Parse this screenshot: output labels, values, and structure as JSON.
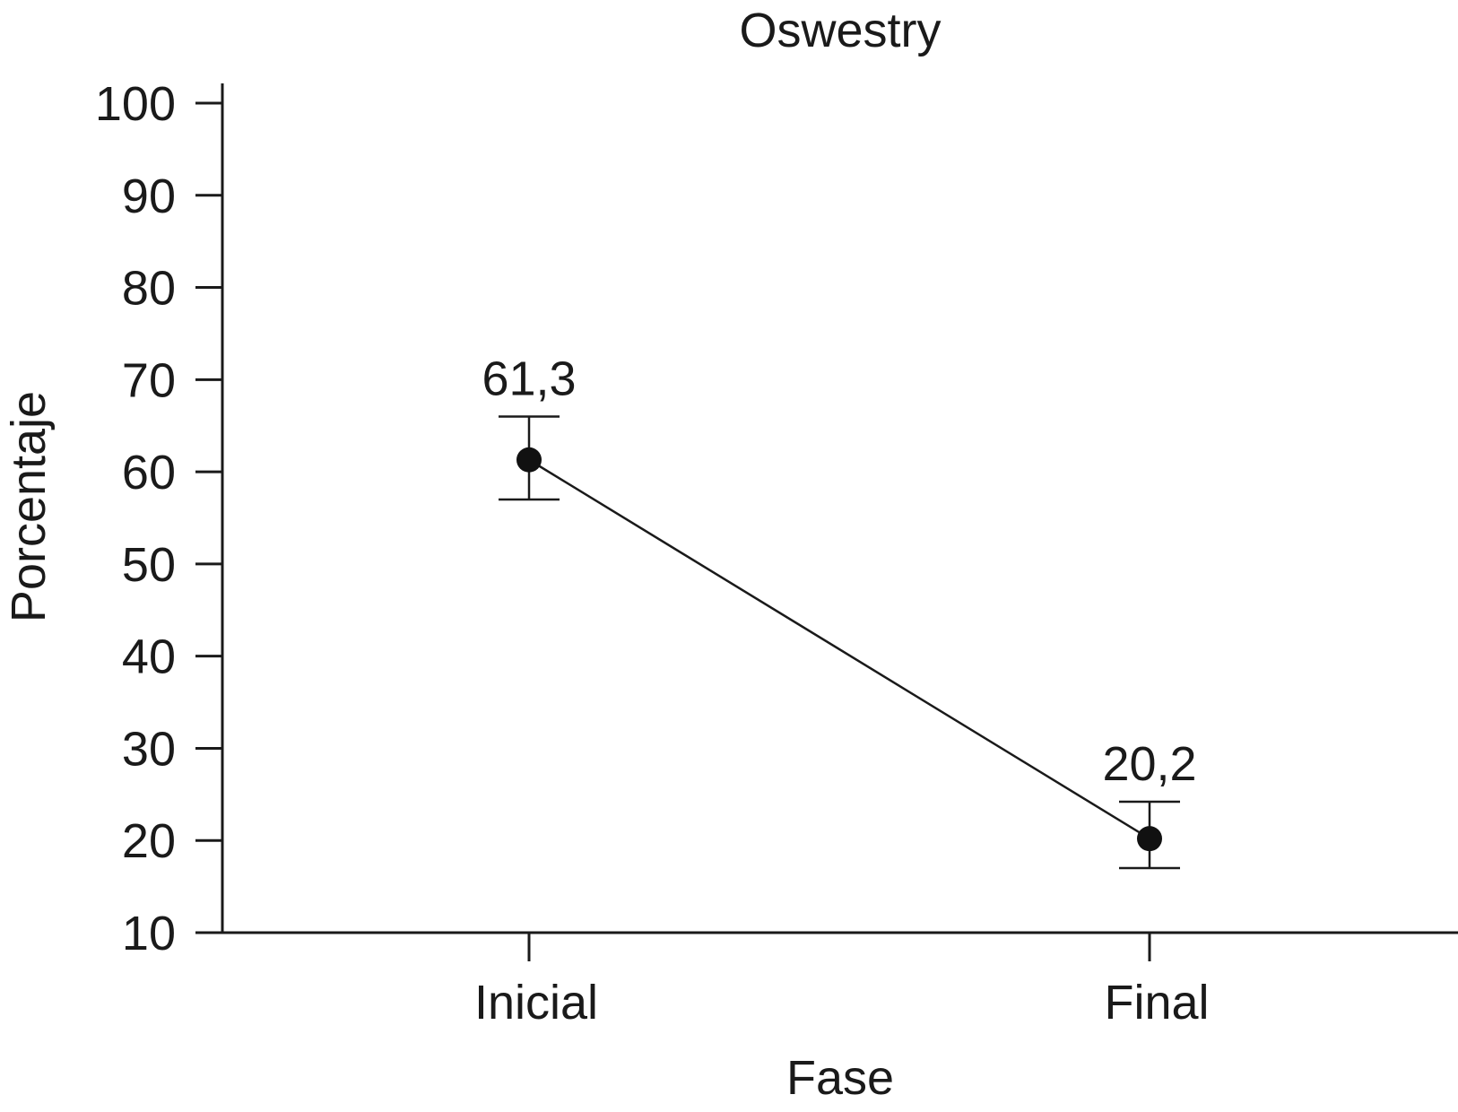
{
  "chart_data": {
    "type": "line",
    "title": "Oswestry",
    "xlabel": "Fase",
    "ylabel": "Porcentaje",
    "categories": [
      "Inicial",
      "Final"
    ],
    "series": [
      {
        "values": [
          61.3,
          20.2
        ],
        "error_low": [
          57,
          17
        ],
        "error_high": [
          66,
          24.2
        ],
        "labels": [
          "61,3",
          "20,2"
        ]
      }
    ],
    "ylim": [
      10,
      100
    ],
    "yticks": [
      "10",
      "20",
      "30",
      "40",
      "50",
      "60",
      "70",
      "80",
      "90",
      "100"
    ],
    "grid": false,
    "colors": {
      "marker": "#111111",
      "line": "#1a1a1a"
    }
  }
}
